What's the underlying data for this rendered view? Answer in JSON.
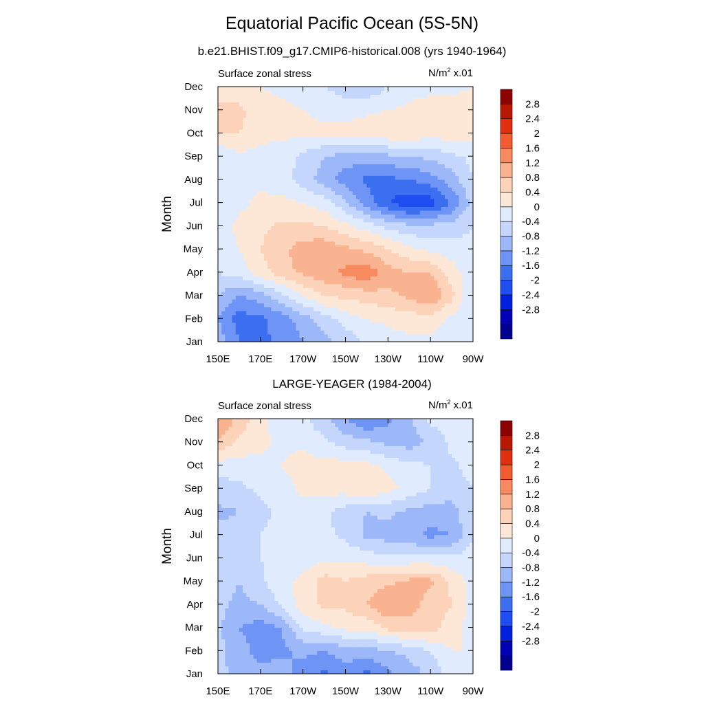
{
  "main_title": "Equatorial Pacific Ocean (5S-5N)",
  "colors": {
    "scale": [
      "#000090",
      "#0000b4",
      "#0020e0",
      "#1e4ef0",
      "#3c6ef0",
      "#6e94f5",
      "#9cb8f8",
      "#c4d6fb",
      "#e0ecfd",
      "#fde8d8",
      "#fcd2b8",
      "#fab390",
      "#f88a60",
      "#f25c30",
      "#e03010",
      "#b81800",
      "#8c0000"
    ]
  },
  "chart_data": [
    {
      "type": "heatmap",
      "title": "b.e21.BHIST.f09_g17.CMIP6-historical.008 (yrs 1940-1964)",
      "left_label": "Surface zonal stress",
      "right_label_base": "N/m",
      "right_label_exp": "2",
      "right_label_suffix": " x.01",
      "ylabel": "Month",
      "xlabel": "",
      "x_ticks": [
        "150E",
        "170E",
        "170W",
        "150W",
        "130W",
        "110W",
        "90W"
      ],
      "y_ticks": [
        "Jan",
        "Feb",
        "Mar",
        "Apr",
        "May",
        "Jun",
        "Jul",
        "Aug",
        "Sep",
        "Oct",
        "Nov",
        "Dec"
      ],
      "colorbar_labels": [
        "2.8",
        "2.4",
        "2",
        "1.6",
        "1.2",
        "0.8",
        "0.4",
        "0",
        "-0.4",
        "-0.8",
        "-1.2",
        "-1.6",
        "-2",
        "-2.4",
        "-2.8"
      ],
      "levels": [
        -2.8,
        -2.4,
        -2,
        -1.6,
        -1.2,
        -0.8,
        -0.4,
        0,
        0.4,
        0.8,
        1.2,
        1.6,
        2,
        2.4,
        2.8
      ],
      "x": [
        150,
        160,
        170,
        180,
        190,
        200,
        210,
        220,
        230,
        240,
        250,
        260,
        270
      ],
      "y": [
        "Jan",
        "Feb",
        "Mar",
        "Apr",
        "May",
        "Jun",
        "Jul",
        "Aug",
        "Sep",
        "Oct",
        "Nov",
        "Dec"
      ],
      "z": [
        [
          -0.6,
          -1.2,
          -1.3,
          -1.1,
          -0.8,
          -0.5,
          -0.3,
          0.1,
          0.2,
          0.3,
          0.3,
          0.2,
          0.0
        ],
        [
          -0.8,
          -1.4,
          -1.3,
          -1.0,
          -0.6,
          -0.2,
          0.2,
          0.4,
          0.5,
          0.6,
          0.6,
          0.3,
          0.0
        ],
        [
          -0.4,
          -0.8,
          -0.6,
          -0.1,
          0.4,
          0.8,
          0.9,
          1.0,
          1.1,
          1.3,
          1.6,
          0.9,
          0.0
        ],
        [
          0.0,
          0.2,
          0.6,
          1.0,
          1.3,
          1.5,
          1.7,
          1.9,
          1.4,
          1.2,
          1.2,
          0.6,
          0.1
        ],
        [
          0.2,
          0.4,
          0.8,
          1.1,
          1.4,
          1.5,
          1.3,
          1.1,
          0.8,
          0.5,
          0.3,
          0.2,
          0.1
        ],
        [
          0.2,
          0.5,
          0.7,
          0.9,
          0.9,
          0.8,
          0.5,
          0.2,
          -0.1,
          -0.3,
          -0.3,
          -0.2,
          0.0
        ],
        [
          0.2,
          0.3,
          0.5,
          0.5,
          0.4,
          0.2,
          -0.3,
          -1.0,
          -1.6,
          -1.9,
          -1.8,
          -1.2,
          -0.2
        ],
        [
          0.1,
          0.2,
          0.3,
          0.2,
          -0.2,
          -0.6,
          -1.0,
          -1.3,
          -1.3,
          -1.2,
          -1.0,
          -0.6,
          0.0
        ],
        [
          0.0,
          0.3,
          0.3,
          0.2,
          -0.1,
          -0.4,
          -0.6,
          -0.6,
          -0.5,
          -0.4,
          -0.3,
          -0.1,
          0.1
        ],
        [
          0.8,
          0.8,
          0.5,
          0.5,
          0.5,
          0.5,
          0.6,
          0.7,
          0.7,
          0.7,
          0.6,
          0.6,
          0.5
        ],
        [
          1.0,
          0.9,
          0.6,
          0.5,
          0.4,
          0.3,
          0.2,
          0.3,
          0.4,
          0.5,
          0.6,
          0.6,
          0.6
        ],
        [
          0.4,
          0.5,
          0.4,
          0.3,
          0.2,
          0.0,
          -0.2,
          -0.3,
          0.0,
          0.2,
          0.3,
          0.3,
          0.4
        ]
      ]
    },
    {
      "type": "heatmap",
      "title": "LARGE-YEAGER (1984-2004)",
      "left_label": "Surface zonal stress",
      "right_label_base": "N/m",
      "right_label_exp": "2",
      "right_label_suffix": " x.01",
      "ylabel": "Month",
      "xlabel": "",
      "x_ticks": [
        "150E",
        "170E",
        "170W",
        "150W",
        "130W",
        "110W",
        "90W"
      ],
      "y_ticks": [
        "Jan",
        "Feb",
        "Mar",
        "Apr",
        "May",
        "Jun",
        "Jul",
        "Aug",
        "Sep",
        "Oct",
        "Nov",
        "Dec"
      ],
      "colorbar_labels": [
        "2.8",
        "2.4",
        "2",
        "1.6",
        "1.2",
        "0.8",
        "0.4",
        "0",
        "-0.4",
        "-0.8",
        "-1.2",
        "-1.6",
        "-2",
        "-2.4",
        "-2.8"
      ],
      "levels": [
        -2.8,
        -2.4,
        -2,
        -1.6,
        -1.2,
        -0.8,
        -0.4,
        0,
        0.4,
        0.8,
        1.2,
        1.6,
        2,
        2.4,
        2.8
      ],
      "x": [
        150,
        160,
        170,
        180,
        190,
        200,
        210,
        220,
        230,
        240,
        250,
        260,
        270
      ],
      "y": [
        "Jan",
        "Feb",
        "Mar",
        "Apr",
        "May",
        "Jun",
        "Jul",
        "Aug",
        "Sep",
        "Oct",
        "Nov",
        "Dec"
      ],
      "z": [
        [
          -0.3,
          -0.5,
          -0.6,
          -0.6,
          -1.0,
          -1.3,
          -1.0,
          -1.3,
          -0.9,
          -0.6,
          -0.3,
          0.2,
          0.2
        ],
        [
          -0.3,
          -0.6,
          -1.0,
          -0.9,
          -0.7,
          -0.8,
          -0.6,
          -0.6,
          -0.4,
          -0.3,
          0.0,
          0.4,
          0.4
        ],
        [
          -0.3,
          -0.8,
          -1.0,
          -0.8,
          0.1,
          0.3,
          0.5,
          0.5,
          0.9,
          1.0,
          1.0,
          0.6,
          0.2
        ],
        [
          -0.3,
          -0.5,
          -0.4,
          0.1,
          0.6,
          0.9,
          0.9,
          1.2,
          1.6,
          1.4,
          1.0,
          0.8,
          0.2
        ],
        [
          -0.2,
          -0.4,
          -0.1,
          0.3,
          0.5,
          1.0,
          0.8,
          1.0,
          1.1,
          1.3,
          1.3,
          0.7,
          0.2
        ],
        [
          -0.1,
          -0.2,
          0.0,
          0.1,
          0.2,
          0.3,
          0.3,
          0.2,
          0.1,
          0.1,
          0.1,
          0.1,
          0.2
        ],
        [
          -0.2,
          -0.3,
          0.0,
          0.1,
          0.2,
          0.1,
          -0.1,
          -0.5,
          -0.6,
          -0.7,
          -0.9,
          -0.8,
          0.0
        ],
        [
          -0.5,
          -0.4,
          -0.1,
          0.1,
          0.2,
          0.1,
          -0.2,
          -0.4,
          -0.3,
          -0.5,
          -0.6,
          -0.6,
          0.0
        ],
        [
          -0.2,
          -0.1,
          0.1,
          0.2,
          0.5,
          0.5,
          0.6,
          0.8,
          0.5,
          0.3,
          0.0,
          -0.2,
          0.0
        ],
        [
          0.2,
          0.2,
          0.3,
          0.4,
          0.6,
          0.5,
          0.6,
          0.5,
          0.3,
          0.1,
          0.0,
          -0.1,
          0.2
        ],
        [
          1.2,
          0.7,
          0.5,
          0.3,
          0.3,
          0.1,
          -0.2,
          -0.3,
          -0.5,
          -0.6,
          -0.3,
          0.1,
          0.3
        ],
        [
          1.6,
          1.1,
          0.5,
          0.2,
          0.1,
          -0.3,
          -0.8,
          -1.2,
          -0.9,
          -0.5,
          0.1,
          0.2,
          0.3
        ]
      ]
    }
  ]
}
